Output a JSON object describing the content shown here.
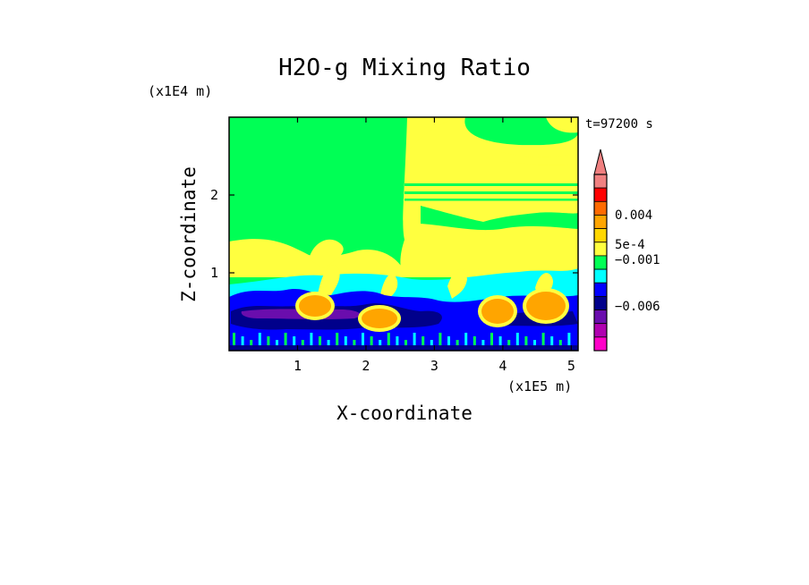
{
  "chart_data": {
    "type": "heatmap",
    "title": "H2O-g Mixing Ratio",
    "xlabel": "X-coordinate",
    "ylabel": "Z-coordinate",
    "x_unit": "(x1E5 m)",
    "y_unit": "(x1E4 m)",
    "time_label": "t=97200 s",
    "xlim": [
      0,
      5.1
    ],
    "ylim": [
      0,
      3.0
    ],
    "x_ticks": [
      "1",
      "2",
      "3",
      "4",
      "5"
    ],
    "y_ticks": [
      "1",
      "2"
    ],
    "grid": false,
    "legend": "right",
    "colorbar": {
      "extend_top": true,
      "tick_labels": [
        "0.004",
        "5e-4",
        "−0.001",
        "−0.006"
      ],
      "levels_top_to_bottom": [
        {
          "color": "#f08080"
        },
        {
          "color": "#ff0000"
        },
        {
          "color": "#ff6a00"
        },
        {
          "color": "#ffa500"
        },
        {
          "color": "#ffd700"
        },
        {
          "color": "#ffff3f"
        },
        {
          "color": "#00ff55"
        },
        {
          "color": "#00ffff"
        },
        {
          "color": "#0000ff"
        },
        {
          "color": "#00008b"
        },
        {
          "color": "#6a0dad"
        },
        {
          "color": "#b000b0"
        },
        {
          "color": "#ff00c8"
        }
      ]
    },
    "field_description_colors": {
      "upper_background": "#00ff55",
      "moist_plumes": "#ffff3f",
      "boundary_layer_top": "#00ffff",
      "dry_layer": "#0000ff",
      "very_dry_layer": "#00008b",
      "driest_core": "#6a0dad",
      "anomaly_patches": "#ffa500"
    }
  }
}
